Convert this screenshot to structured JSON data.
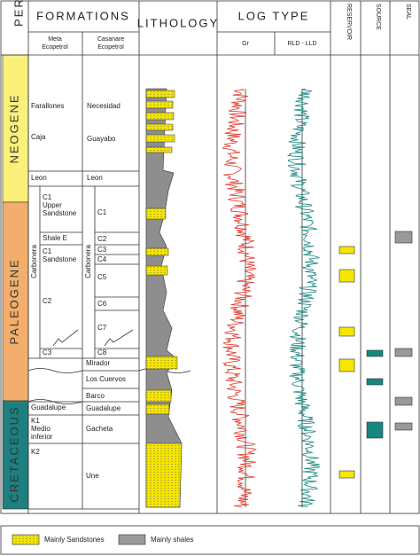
{
  "header": {
    "period": "PERIOD",
    "formations": "FORMATIONS",
    "lithology": "LITHOLOGY",
    "log_type": "LOG TYPE",
    "reservoir": "RESERVOIR",
    "source": "SOURCE",
    "seal": "SEAL",
    "meta": [
      "Meta",
      "Ecopetrol"
    ],
    "casanare": [
      "Casanare",
      "Ecopetrol"
    ],
    "gr": "Gr",
    "rld": "RLD - LLD"
  },
  "periods": [
    "NEOGENE",
    "PALEOGENE",
    "CRETACEOUS"
  ],
  "meta_units": {
    "farallones": "Farallones",
    "caja": "Caja",
    "leon": "Leon",
    "c1_upper": [
      "C1",
      "Upper",
      "Sandstone"
    ],
    "shale_e": "Shale E",
    "c1_sandstone": [
      "C1",
      "Sandstone"
    ],
    "c2": "C2",
    "c3": "C3",
    "guadalupe": "Guadalupe",
    "k1": [
      "K1",
      "Medio",
      "inferior"
    ],
    "k2": "K2",
    "carbonera": "Carbonera"
  },
  "casanare_units": {
    "necesidad": "Necesidad",
    "guayabo": "Guayabo",
    "leon": "Leon",
    "c1": "C1",
    "c2": "C2",
    "c3": "C3",
    "c4": "C4",
    "c5": "C5",
    "c6": "C6",
    "c7": "C7",
    "c8": "C8",
    "mirador": "Mirador",
    "los_cuervos": "Los Cuervos",
    "barco": "Barco",
    "guadalupe": "Guadalupe",
    "gacheta": "Gacheta",
    "une": "Une",
    "carbonera": "Carbonera"
  },
  "legend": {
    "sandstones": "Mainly Sandstones",
    "shales": "Mainly shales"
  }
}
